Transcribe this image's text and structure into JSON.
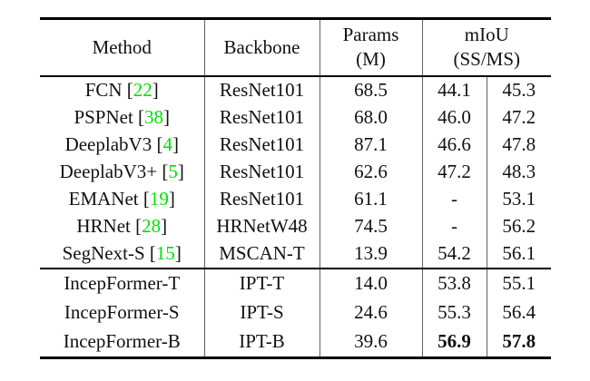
{
  "colors": {
    "citation_green": "#00E100",
    "rule_black": "#000000",
    "divider_gray": "#606060",
    "background": "#ffffff"
  },
  "header": {
    "method": "Method",
    "backbone": "Backbone",
    "params": [
      "Params",
      "(M)"
    ],
    "miou": [
      "mIoU",
      "(SS/MS)"
    ]
  },
  "groups": [
    {
      "rows": [
        {
          "method": "FCN",
          "cite": "22",
          "backbone": "ResNet101",
          "params": "68.5",
          "ss": "44.1",
          "ms": "45.3",
          "bold_ss": false,
          "bold_ms": false
        },
        {
          "method": "PSPNet",
          "cite": "38",
          "backbone": "ResNet101",
          "params": "68.0",
          "ss": "46.0",
          "ms": "47.2",
          "bold_ss": false,
          "bold_ms": false
        },
        {
          "method": "DeeplabV3",
          "cite": "4",
          "backbone": "ResNet101",
          "params": "87.1",
          "ss": "46.6",
          "ms": "47.8",
          "bold_ss": false,
          "bold_ms": false
        },
        {
          "method": "DeeplabV3+",
          "cite": "5",
          "backbone": "ResNet101",
          "params": "62.6",
          "ss": "47.2",
          "ms": "48.3",
          "bold_ss": false,
          "bold_ms": false
        },
        {
          "method": "EMANet",
          "cite": "19",
          "backbone": "ResNet101",
          "params": "61.1",
          "ss": "-",
          "ms": "53.1",
          "bold_ss": false,
          "bold_ms": false
        },
        {
          "method": "HRNet",
          "cite": "28",
          "backbone": "HRNetW48",
          "params": "74.5",
          "ss": "-",
          "ms": "56.2",
          "bold_ss": false,
          "bold_ms": false
        },
        {
          "method": "SegNext-S",
          "cite": "15",
          "backbone": "MSCAN-T",
          "params": "13.9",
          "ss": "54.2",
          "ms": "56.1",
          "bold_ss": false,
          "bold_ms": false
        }
      ]
    },
    {
      "rows": [
        {
          "method": "IncepFormer-T",
          "cite": null,
          "backbone": "IPT-T",
          "params": "14.0",
          "ss": "53.8",
          "ms": "55.1",
          "bold_ss": false,
          "bold_ms": false
        },
        {
          "method": "IncepFormer-S",
          "cite": null,
          "backbone": "IPT-S",
          "params": "24.6",
          "ss": "55.3",
          "ms": "56.4",
          "bold_ss": false,
          "bold_ms": false
        },
        {
          "method": "IncepFormer-B",
          "cite": null,
          "backbone": "IPT-B",
          "params": "39.6",
          "ss": "56.9",
          "ms": "57.8",
          "bold_ss": true,
          "bold_ms": true
        }
      ]
    }
  ]
}
